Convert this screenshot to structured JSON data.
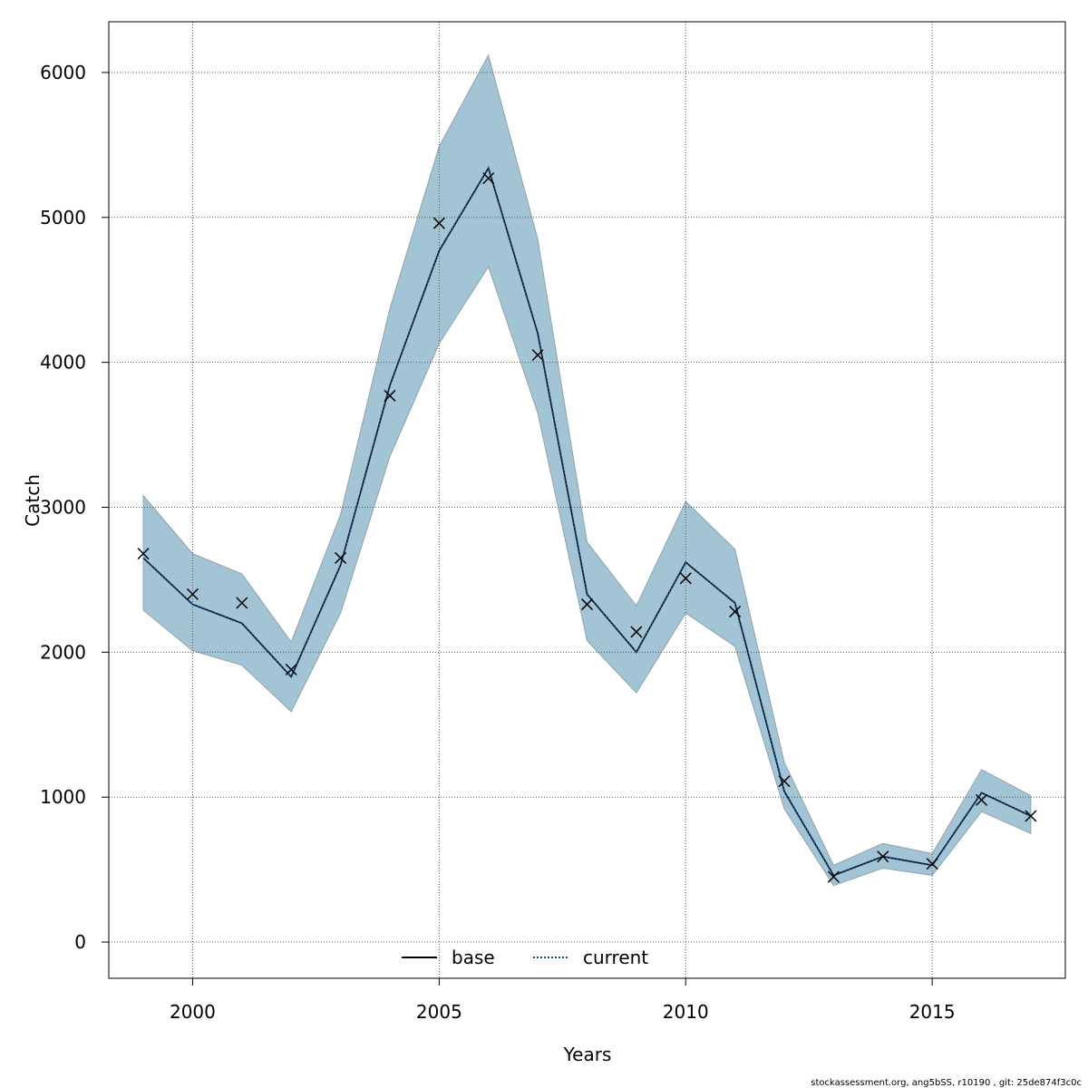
{
  "chart_data": {
    "type": "line",
    "xlabel": "Years",
    "ylabel": "Catch",
    "xlim": [
      1998.3,
      2017.7
    ],
    "ylim": [
      -250,
      6350
    ],
    "x_ticks": [
      2000,
      2005,
      2010,
      2015
    ],
    "y_ticks": [
      0,
      1000,
      2000,
      3000,
      4000,
      5000,
      6000
    ],
    "grid": true,
    "legend_position": "bottom-center",
    "x": [
      1999,
      2000,
      2001,
      2002,
      2003,
      2004,
      2005,
      2006,
      2007,
      2008,
      2009,
      2010,
      2011,
      2012,
      2013,
      2014,
      2015,
      2016,
      2017
    ],
    "band": {
      "color": "#a3c4d5",
      "lower": [
        2290,
        2010,
        1910,
        1590,
        2270,
        3350,
        4130,
        4660,
        3650,
        2080,
        1720,
        2270,
        2040,
        920,
        390,
        510,
        460,
        900,
        750
      ],
      "upper": [
        3080,
        2680,
        2540,
        2070,
        2950,
        4370,
        5490,
        6120,
        4850,
        2760,
        2320,
        3040,
        2710,
        1240,
        530,
        680,
        610,
        1190,
        1010
      ]
    },
    "series": [
      {
        "name": "base",
        "style": "solid",
        "color": "#000000",
        "values": [
          2650,
          2330,
          2200,
          1830,
          2600,
          3840,
          4770,
          5340,
          4200,
          2400,
          2000,
          2620,
          2340,
          1040,
          460,
          590,
          530,
          1030,
          870
        ]
      },
      {
        "name": "current",
        "style": "dotted",
        "color": "#0b4f8a",
        "values": [
          2650,
          2330,
          2200,
          1830,
          2600,
          3840,
          4770,
          5340,
          4200,
          2400,
          2000,
          2620,
          2340,
          1040,
          460,
          590,
          530,
          1030,
          870
        ]
      }
    ],
    "observed": {
      "marker": "x",
      "values": [
        2680,
        2400,
        2340,
        1880,
        2650,
        3770,
        4960,
        5270,
        4050,
        2330,
        2140,
        2510,
        2280,
        1110,
        450,
        590,
        540,
        980,
        870
      ]
    },
    "footer": "stockassessment.org, ang5bSS, r10190 , git: 25de874f3c0c"
  }
}
